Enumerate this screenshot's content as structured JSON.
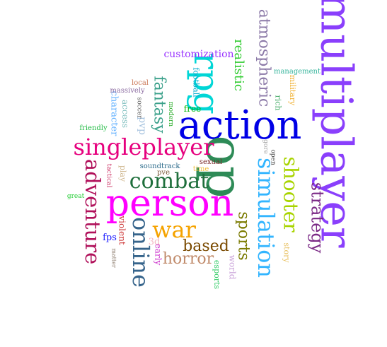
{
  "words": [
    {
      "text": "multiplayer",
      "color": "#8a3ffc",
      "orientation": "vertical"
    },
    {
      "text": "action",
      "color": "#0000e6",
      "orientation": "horizontal"
    },
    {
      "text": "op",
      "color": "#2e8b57",
      "orientation": "vertical"
    },
    {
      "text": "person",
      "color": "#ff00ff",
      "orientation": "horizontal"
    },
    {
      "text": "rpg",
      "color": "#00d6d6",
      "orientation": "vertical"
    },
    {
      "text": "singleplayer",
      "color": "#e6007e",
      "orientation": "horizontal"
    },
    {
      "text": "combat",
      "color": "#1f6f3c",
      "orientation": "horizontal"
    },
    {
      "text": "simulation",
      "color": "#33b5ff",
      "orientation": "vertical"
    },
    {
      "text": "shooter",
      "color": "#a8d400",
      "orientation": "vertical"
    },
    {
      "text": "adventure",
      "color": "#b0105a",
      "orientation": "vertical"
    },
    {
      "text": "online",
      "color": "#36648b",
      "orientation": "vertical"
    },
    {
      "text": "strategy",
      "color": "#7b2a86",
      "orientation": "vertical"
    },
    {
      "text": "war",
      "color": "#f5a300",
      "orientation": "horizontal"
    },
    {
      "text": "atmospheric",
      "color": "#8c7aa8",
      "orientation": "vertical"
    },
    {
      "text": "sports",
      "color": "#7a7a00",
      "orientation": "vertical"
    },
    {
      "text": "fantasy",
      "color": "#3aa08a",
      "orientation": "vertical"
    },
    {
      "text": "based",
      "color": "#7a4a00",
      "orientation": "horizontal"
    },
    {
      "text": "horror",
      "color": "#c08a6a",
      "orientation": "horizontal"
    },
    {
      "text": "realistic",
      "color": "#33cc33",
      "orientation": "vertical"
    },
    {
      "text": "customization",
      "color": "#9933ff",
      "orientation": "horizontal"
    },
    {
      "text": "pvp",
      "color": "#a8c4e0",
      "orientation": "vertical"
    },
    {
      "text": "character",
      "color": "#66b3ff",
      "orientation": "vertical"
    },
    {
      "text": "free",
      "color": "#00b300",
      "orientation": "horizontal"
    },
    {
      "text": "access",
      "color": "#7fbfbf",
      "orientation": "vertical"
    },
    {
      "text": "football",
      "color": "#00aacc",
      "orientation": "vertical"
    },
    {
      "text": "fps",
      "color": "#1a1aff",
      "orientation": "horizontal"
    },
    {
      "text": "violent",
      "color": "#cc3333",
      "orientation": "vertical"
    },
    {
      "text": "early",
      "color": "#cc33cc",
      "orientation": "vertical"
    },
    {
      "text": "3d",
      "color": "#f4b6c2",
      "orientation": "horizontal"
    },
    {
      "text": "esports",
      "color": "#33cc66",
      "orientation": "vertical"
    },
    {
      "text": "world",
      "color": "#c8a0d8",
      "orientation": "vertical"
    },
    {
      "text": "story",
      "color": "#e8c060",
      "orientation": "vertical"
    },
    {
      "text": "military",
      "color": "#f0b030",
      "orientation": "vertical"
    },
    {
      "text": "rich",
      "color": "#44aa66",
      "orientation": "vertical"
    },
    {
      "text": "management",
      "color": "#33b39a",
      "orientation": "horizontal"
    },
    {
      "text": "massively",
      "color": "#8a6aa0",
      "orientation": "horizontal"
    },
    {
      "text": "local",
      "color": "#cc7a5a",
      "orientation": "horizontal"
    },
    {
      "text": "soccer",
      "color": "#555555",
      "orientation": "vertical"
    },
    {
      "text": "modern",
      "color": "#22aa22",
      "orientation": "vertical"
    },
    {
      "text": "friendly",
      "color": "#22bb44",
      "orientation": "horizontal"
    },
    {
      "text": "play",
      "color": "#d0b890",
      "orientation": "vertical"
    },
    {
      "text": "soundtrack",
      "color": "#2a6a8a",
      "orientation": "horizontal"
    },
    {
      "text": "pve",
      "color": "#7a5a3a",
      "orientation": "horizontal"
    },
    {
      "text": "time",
      "color": "#f0c040",
      "orientation": "horizontal"
    },
    {
      "text": "sexual",
      "color": "#7a2a2a",
      "orientation": "horizontal"
    },
    {
      "text": "open",
      "color": "#444444",
      "orientation": "vertical"
    },
    {
      "text": "gore",
      "color": "#a8a8a8",
      "orientation": "vertical"
    },
    {
      "text": "tactical",
      "color": "#cc3366",
      "orientation": "vertical"
    },
    {
      "text": "great",
      "color": "#22cc33",
      "orientation": "horizontal"
    },
    {
      "text": "matter",
      "color": "#8a7a6a",
      "orientation": "vertical"
    }
  ]
}
